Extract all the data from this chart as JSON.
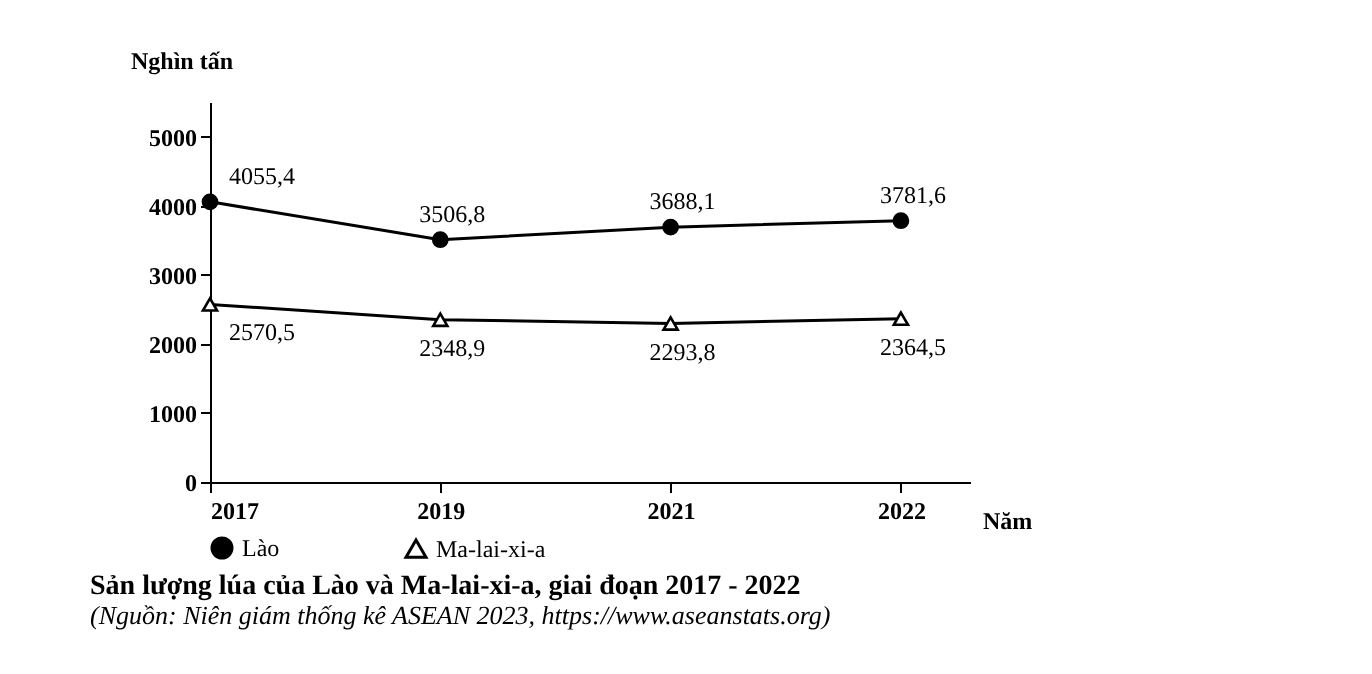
{
  "chart_data": {
    "type": "line",
    "title": "Sản lượng lúa của Lào và Ma-lai-xi-a, giai đoạn 2017 - 2022",
    "annotations": [
      "(Nguồn: Niên giám thống kê ASEAN 2023, https://www.aseanstats.org)"
    ],
    "xlabel": "Năm",
    "ylabel": "Nghìn tấn",
    "categories": [
      "2017",
      "2019",
      "2021",
      "2022"
    ],
    "series": [
      {
        "name": "Lào",
        "color": "#000000",
        "marker": "circle",
        "values": [
          4055.4,
          3506.8,
          3688.1,
          3781.6
        ],
        "value_labels": [
          "4055,4",
          "3506,8",
          "3688,1",
          "3781,6"
        ]
      },
      {
        "name": "Ma-lai-xi-a",
        "color": "#000000",
        "marker": "triangle",
        "values": [
          2570.5,
          2348.9,
          2293.8,
          2364.5
        ],
        "value_labels": [
          "2570,5",
          "2348,9",
          "2293,8",
          "2364,5"
        ]
      }
    ],
    "ylim": [
      0,
      5500
    ],
    "yticks": [
      0,
      1000,
      2000,
      3000,
      4000,
      5000
    ],
    "grid": false,
    "legend": "bottom"
  }
}
